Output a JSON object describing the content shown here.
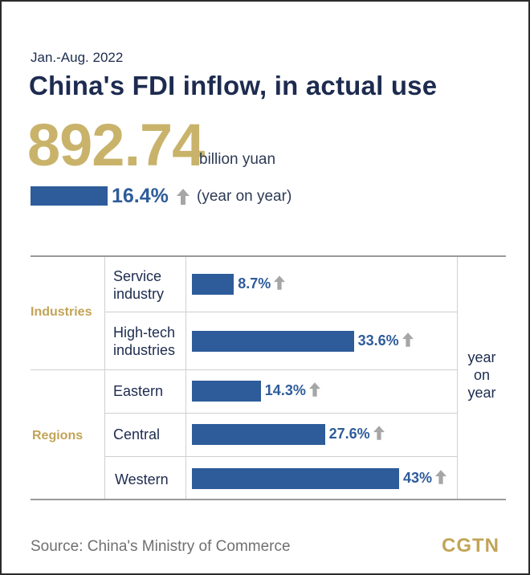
{
  "period": "Jan.-Aug. 2022",
  "title": "China's FDI inflow, in actual use",
  "total": {
    "value": "892.74",
    "unit": "billion yuan"
  },
  "headline_growth": {
    "value": 16.4,
    "label": "16.4%",
    "note": "(year on year)"
  },
  "column_note": [
    "year",
    "on",
    "year"
  ],
  "colors": {
    "bar": "#2e5c9a",
    "gold": "#c9b36b",
    "arrow": "#a6a6a6",
    "navy": "#1d2b4f"
  },
  "chart_data": {
    "type": "bar",
    "orientation": "horizontal",
    "unit": "%",
    "groups": [
      {
        "name": "Industries",
        "rows": [
          {
            "label_lines": [
              "Service",
              "industry"
            ],
            "value": 8.7,
            "label": "8.7%"
          },
          {
            "label_lines": [
              "High-tech",
              "industries"
            ],
            "value": 33.6,
            "label": "33.6%"
          }
        ]
      },
      {
        "name": "Regions",
        "rows": [
          {
            "label_lines": [
              "Eastern"
            ],
            "value": 14.3,
            "label": "14.3%"
          },
          {
            "label_lines": [
              "Central"
            ],
            "value": 27.6,
            "label": "27.6%"
          },
          {
            "label_lines": [
              "Western"
            ],
            "value": 43,
            "label": "43%"
          }
        ]
      }
    ]
  },
  "source": "Source: China's Ministry of Commerce",
  "logo": "CGTN"
}
